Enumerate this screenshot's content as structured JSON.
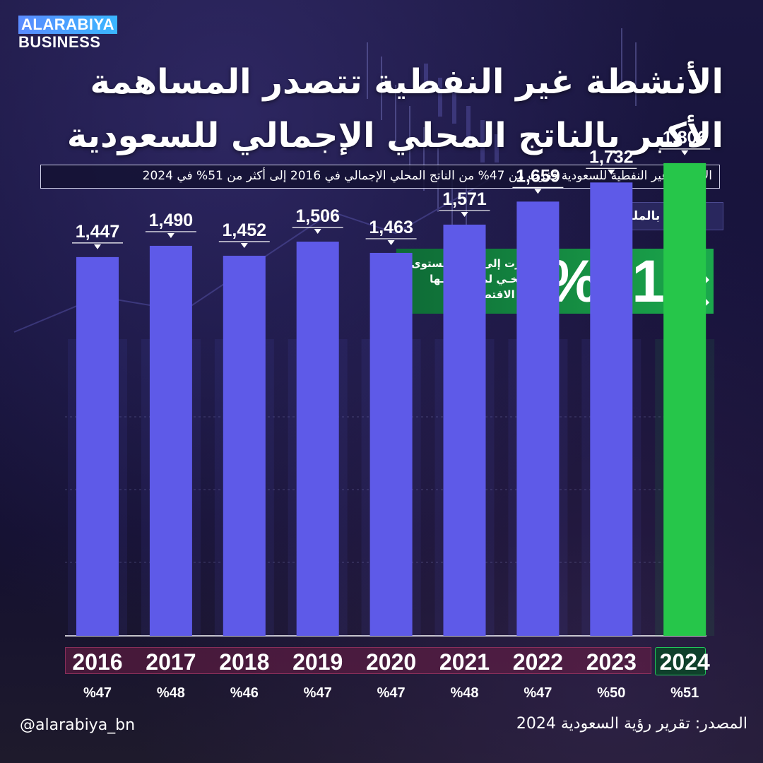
{
  "brand": {
    "line1": "ALARABIYA",
    "line2": "BUSINESS"
  },
  "title_line1": "الأنشطة غير النفطية تتصدر المساهمة",
  "title_line2": "الأكبر بالناتج المحلي الإجمالي للسعودية",
  "subtitle": "الأنشطة غير النفطية للسعودية قفزت من 47% من الناتج المحلي الإجمالي في 2016 إلى أكثر من 51% في 2024",
  "unit_label": "الأرقام بالمليار⃁",
  "callout": {
    "value": "%51",
    "text_line1": "قفزت إلى أعلى مستوى",
    "text_line2": "تاريخـي لمسـاهمتـها",
    "text_line3": "في الاقتصاد",
    "icon": "double-chevron-up-icon"
  },
  "colors": {
    "bar": "#5e5ae8",
    "highlight": "#26c64a",
    "background": "#15123a"
  },
  "chart_data": {
    "type": "bar",
    "categories": [
      "2016",
      "2017",
      "2018",
      "2019",
      "2020",
      "2021",
      "2022",
      "2023",
      "2024"
    ],
    "values": [
      1447,
      1490,
      1452,
      1506,
      1463,
      1571,
      1659,
      1732,
      1806
    ],
    "value_labels": [
      "1,447",
      "1,490",
      "1,452",
      "1,506",
      "1,463",
      "1,571",
      "1,659",
      "1,732",
      "1,806"
    ],
    "share_labels": [
      "%47",
      "%48",
      "%46",
      "%47",
      "%47",
      "%48",
      "%47",
      "%50",
      "%51"
    ],
    "highlight_category": "2024",
    "title": "",
    "xlabel": "",
    "ylabel": ""
  },
  "footer": {
    "source": "المصدر: تقرير رؤية السعودية 2024",
    "handle": "@alarabiya_bn"
  }
}
